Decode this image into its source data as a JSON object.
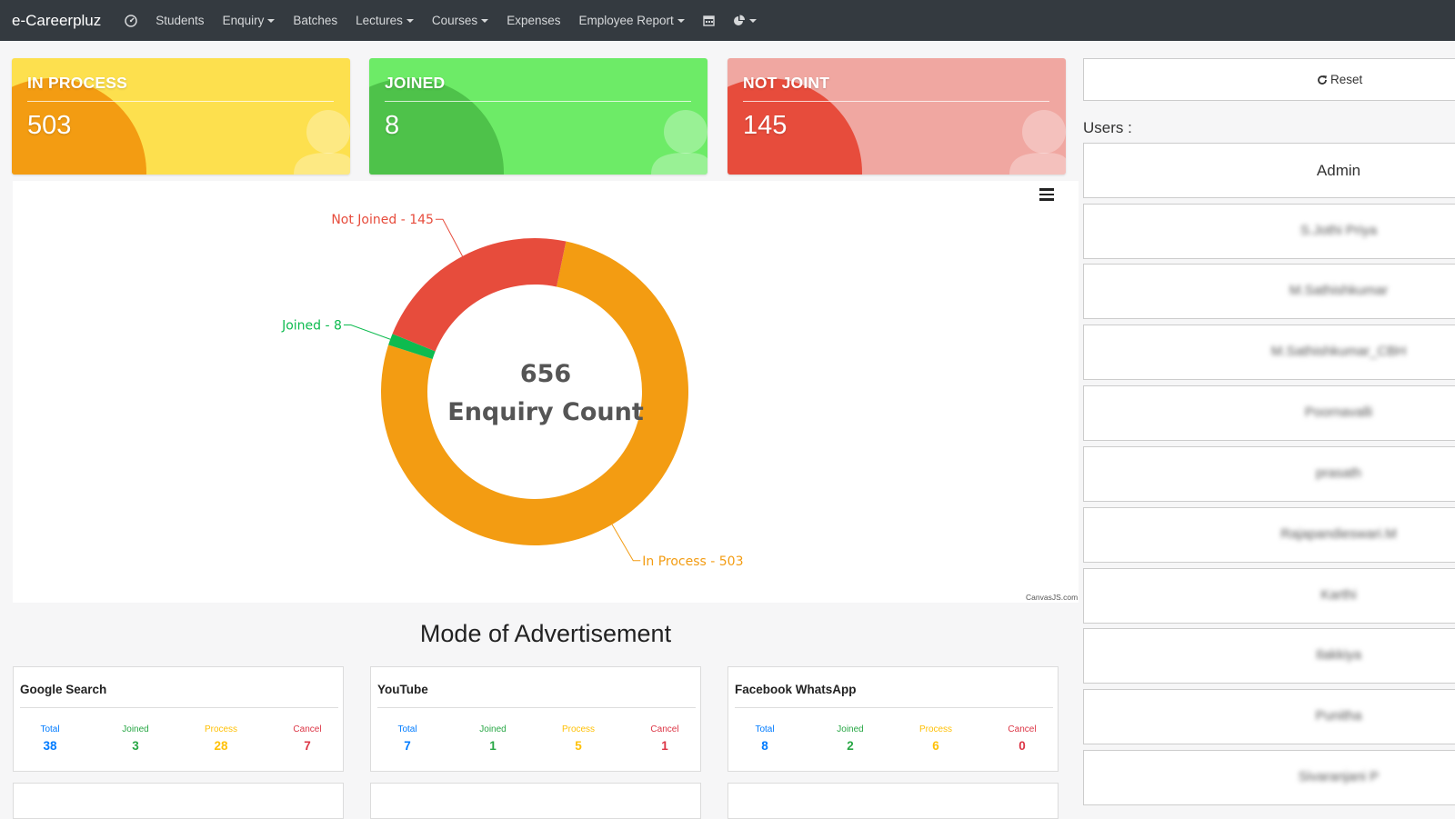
{
  "navbar": {
    "brand": "e-Careerpluz",
    "items": [
      {
        "label": "Students",
        "dropdown": false
      },
      {
        "label": "Enquiry",
        "dropdown": true
      },
      {
        "label": "Batches",
        "dropdown": false
      },
      {
        "label": "Lectures",
        "dropdown": true
      },
      {
        "label": "Courses",
        "dropdown": true
      },
      {
        "label": "Expenses",
        "dropdown": false
      },
      {
        "label": "Employee Report",
        "dropdown": true
      }
    ],
    "icons": [
      "dashboard-icon",
      "calendar-icon",
      "pie-chart-icon"
    ]
  },
  "summary_cards": [
    {
      "title": "IN PROCESS",
      "value": "503",
      "color": "#fde04e",
      "accent": "#f39c12"
    },
    {
      "title": "JOINED",
      "value": "8",
      "color": "#6deb67",
      "accent": "#4ec24a"
    },
    {
      "title": "NOT JOINT",
      "value": "145",
      "color": "#f0a7a1",
      "accent": "#e74c3c"
    }
  ],
  "chart_data": {
    "type": "pie",
    "subtype": "doughnut",
    "center_text": [
      "656",
      "Enquiry Count"
    ],
    "slices": [
      {
        "label": "In Process",
        "value": 503,
        "display": "In Process - 503",
        "color": "#f39c12"
      },
      {
        "label": "Joined",
        "value": 8,
        "display": "Joined - 8",
        "color": "#0dbb4f"
      },
      {
        "label": "Not Joined",
        "value": 145,
        "display": "Not Joined - 145",
        "color": "#e74c3c"
      }
    ],
    "credits": "CanvasJS.com"
  },
  "advertisement": {
    "title": "Mode of Advertisement",
    "stat_labels": [
      "Total",
      "Joined",
      "Process",
      "Cancel"
    ],
    "stat_colors": [
      "#007bff",
      "#28a745",
      "#ffc107",
      "#dc3545"
    ],
    "cards": [
      {
        "name": "Google Search",
        "stats": [
          "38",
          "3",
          "28",
          "7"
        ]
      },
      {
        "name": "YouTube",
        "stats": [
          "7",
          "1",
          "5",
          "1"
        ]
      },
      {
        "name": "Facebook WhatsApp",
        "stats": [
          "8",
          "2",
          "6",
          "0"
        ]
      }
    ]
  },
  "sidebar": {
    "reset_label": "Reset",
    "users_label": "Users :",
    "users": [
      "Admin",
      "S.Jothi Priya",
      "M.Sathishkumar",
      "M.Sathishkumar_CBH",
      "Poornavalli",
      "prasath",
      "Rajapandieswari.M",
      "Karthi",
      "Ilakkiya",
      "Punitha",
      "Sivaranjani P"
    ]
  }
}
